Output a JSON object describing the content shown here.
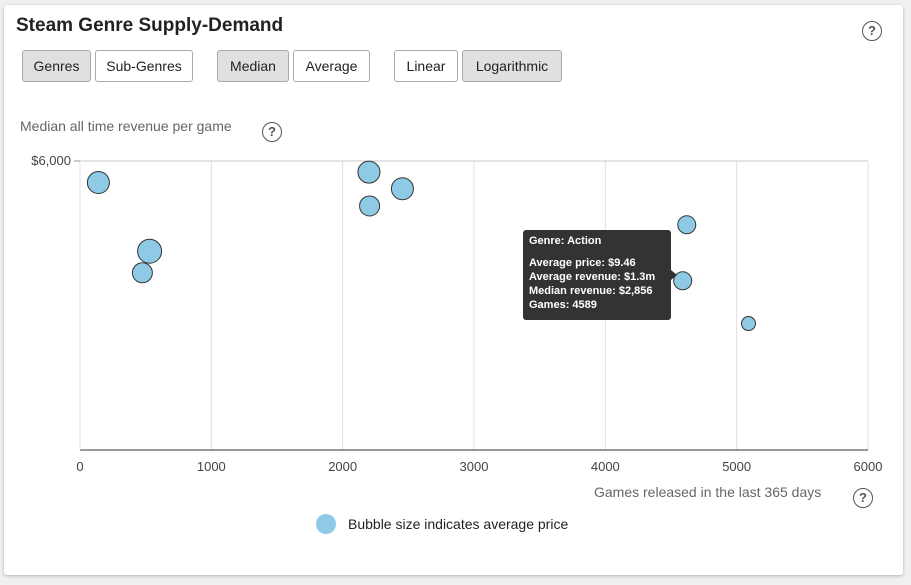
{
  "header": {
    "title": "Steam Genre Supply-Demand"
  },
  "controls": {
    "genres": "Genres",
    "subgenres": "Sub-Genres",
    "median": "Median",
    "average": "Average",
    "linear": "Linear",
    "logarithmic": "Logarithmic"
  },
  "help_glyph": "?",
  "tooltip": {
    "genre": "Genre: Action",
    "avg_price": "Average price: $9.46",
    "avg_revenue": "Average revenue: $1.3m",
    "median_revenue": "Median revenue: $2,856",
    "games": "Games: 4589"
  },
  "legend": {
    "text": "Bubble size indicates average price"
  },
  "chart_data": {
    "type": "scatter",
    "ylabel": "Median all time revenue per game",
    "xlabel": "Games released in the last 365 days",
    "x_ticks": [
      "0",
      "1000",
      "2000",
      "3000",
      "4000",
      "5000",
      "6000"
    ],
    "y_ticks": [
      "$6,000"
    ],
    "xlim": [
      0,
      6000
    ],
    "y_scale": "log",
    "ylim_top": 6000,
    "grid": true,
    "bubble_color": "#8ecae6",
    "points": [
      {
        "x": 140,
        "y": 5250,
        "size": 11
      },
      {
        "x": 530,
        "y": 3430,
        "size": 12
      },
      {
        "x": 475,
        "y": 3000,
        "size": 10
      },
      {
        "x": 2200,
        "y": 5600,
        "size": 11
      },
      {
        "x": 2455,
        "y": 5050,
        "size": 11
      },
      {
        "x": 2205,
        "y": 4540,
        "size": 10
      },
      {
        "x": 4620,
        "y": 4040,
        "size": 9
      },
      {
        "x": 4589,
        "y": 2856,
        "size": 9
      },
      {
        "x": 5090,
        "y": 2190,
        "size": 7
      }
    ]
  }
}
